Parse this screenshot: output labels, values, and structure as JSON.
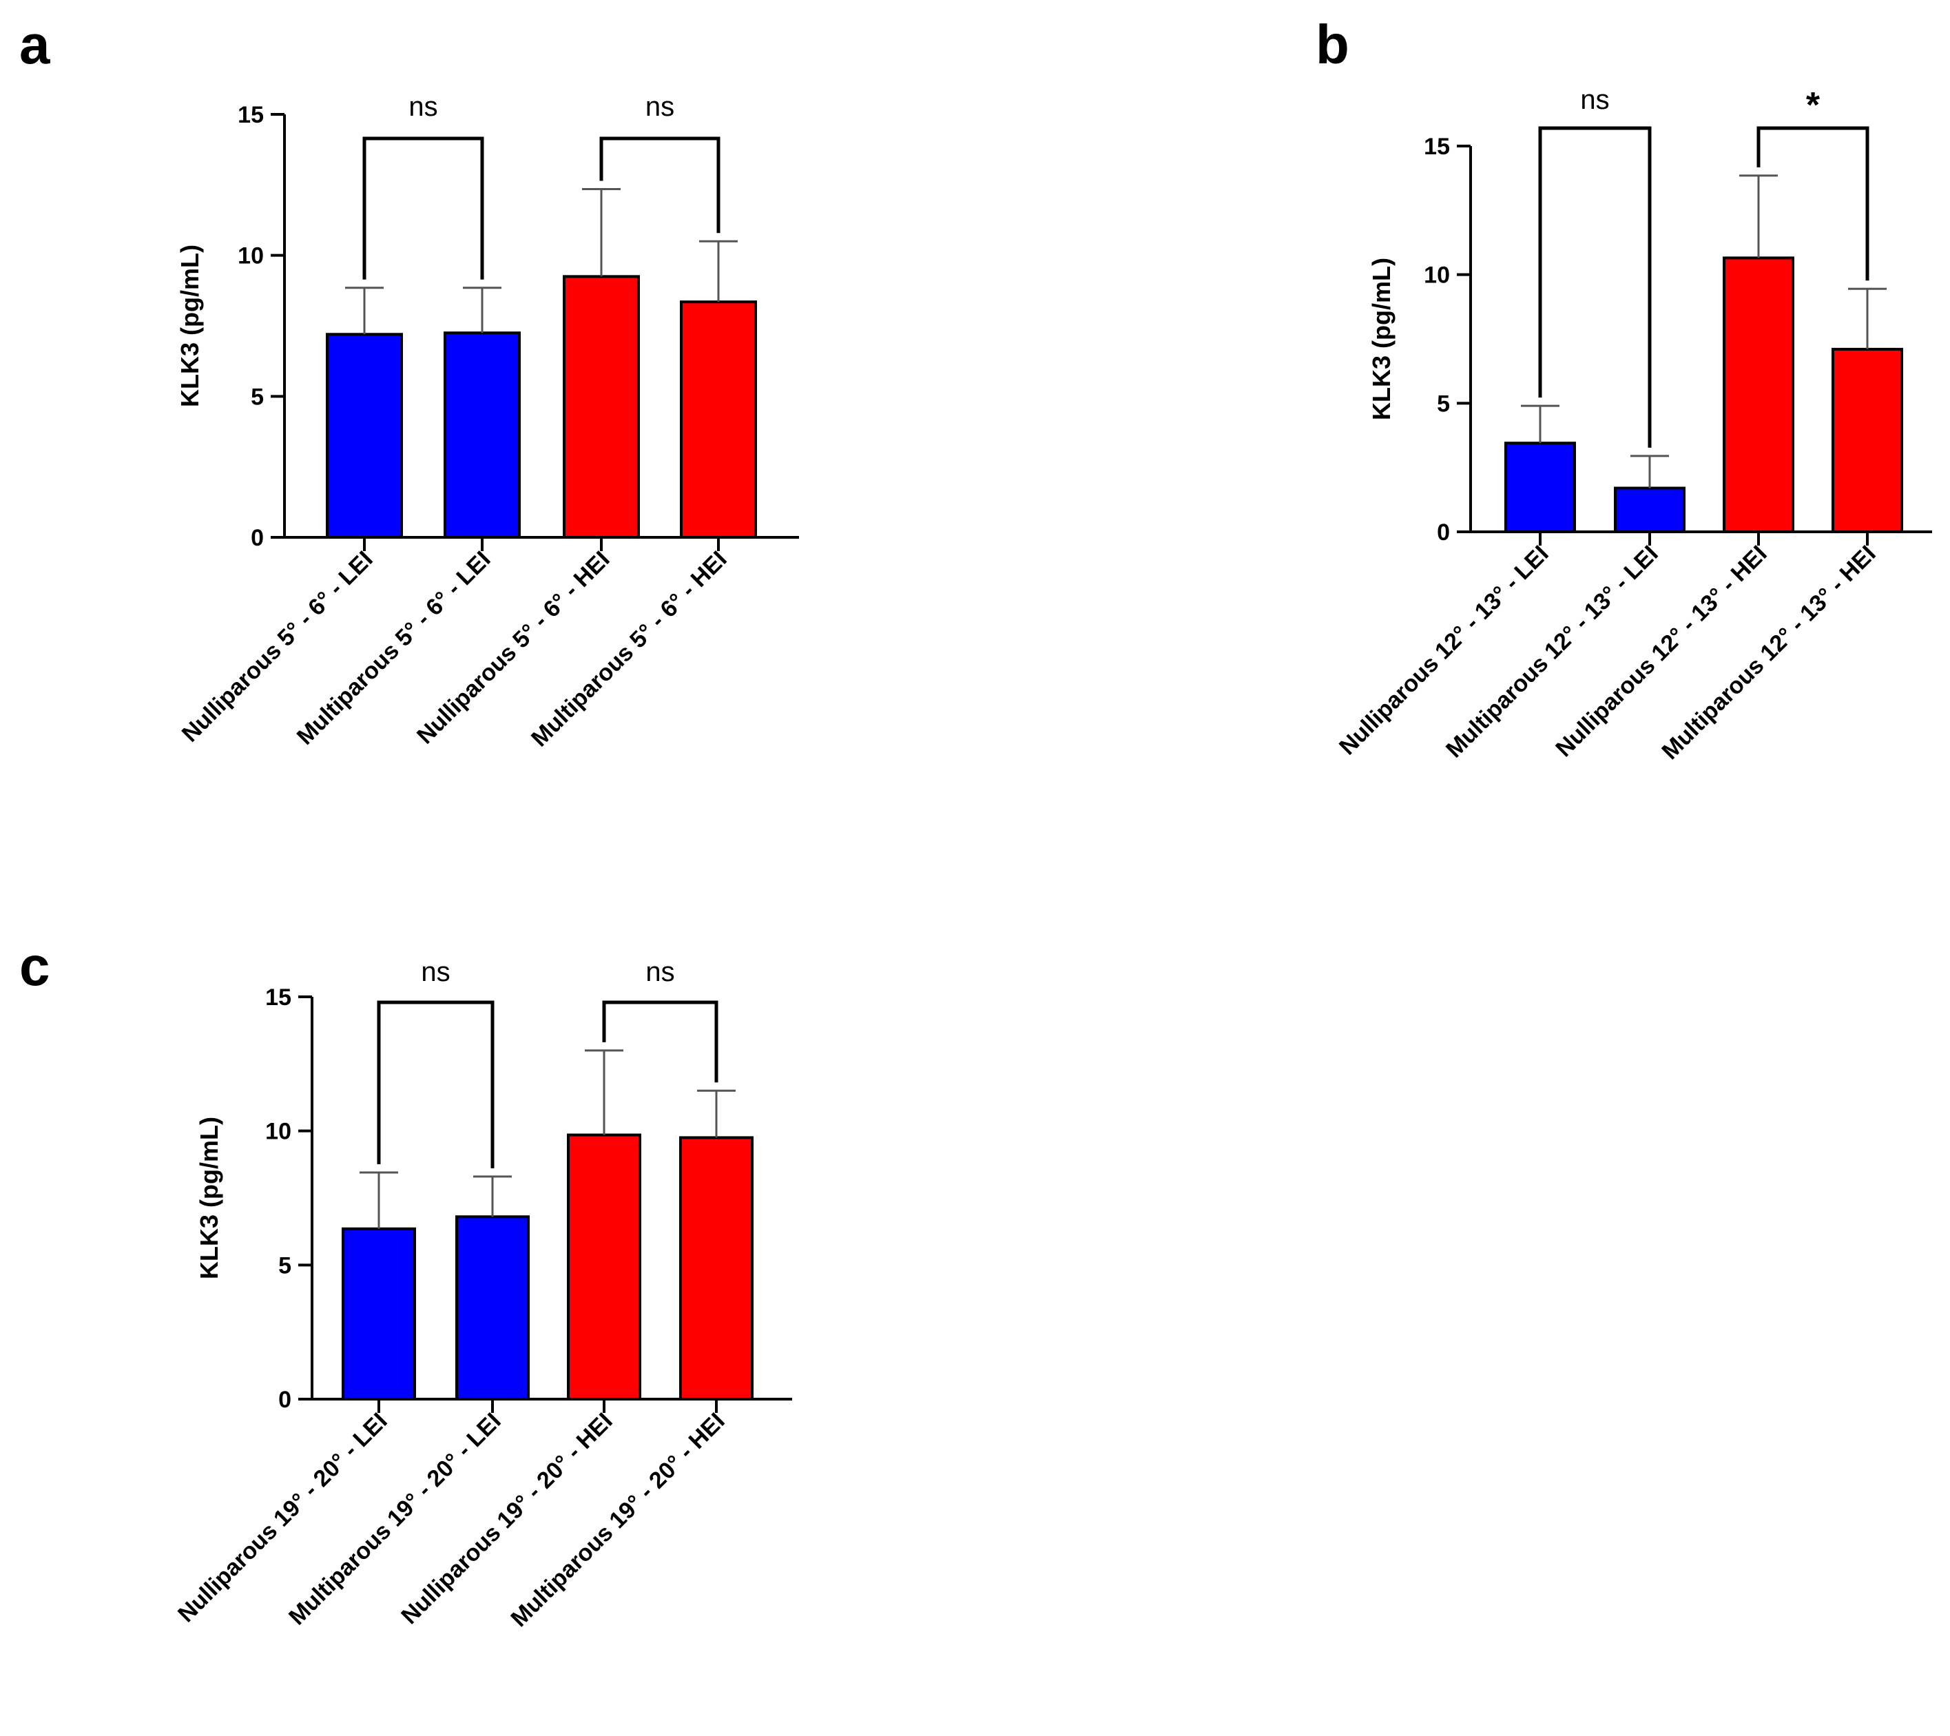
{
  "chart_data": [
    {
      "panel": "a",
      "type": "bar",
      "ylabel": "KLK3 (pg/mL)",
      "ylim": [
        0,
        15
      ],
      "yticks": [
        0,
        5,
        10,
        15
      ],
      "yticklabels": [
        "0",
        "5",
        "10",
        "15"
      ],
      "categories": [
        "Nulliparous 5° - 6° - LEI",
        "Multiparous 5° - 6° - LEI",
        "Nulliparous 5° - 6° - HEI",
        "Multiparous  5° - 6° - HEI"
      ],
      "values": [
        7.2,
        7.25,
        9.25,
        8.35
      ],
      "error_upper": [
        8.85,
        8.85,
        12.35,
        10.5
      ],
      "colors": [
        "#0000ff",
        "#0000ff",
        "#ff0000",
        "#ff0000"
      ],
      "comparisons": [
        {
          "pair": [
            0,
            1
          ],
          "label": "ns"
        },
        {
          "pair": [
            2,
            3
          ],
          "label": "ns"
        }
      ]
    },
    {
      "panel": "b",
      "type": "bar",
      "ylabel": "KLK3 (pg/mL)",
      "ylim": [
        0,
        15
      ],
      "yticks": [
        0,
        5,
        10,
        15
      ],
      "yticklabels": [
        "0",
        "5",
        "10",
        "15"
      ],
      "categories": [
        "Nulliparous  12° - 13° - LEI",
        "Multiparous   12° - 13° - LEI",
        "Nulliparous  12° - 13° - HEI",
        "Multiparous   12° - 13° - HEI"
      ],
      "values": [
        3.45,
        1.7,
        10.65,
        7.1
      ],
      "error_upper": [
        4.9,
        2.95,
        13.85,
        9.45
      ],
      "colors": [
        "#0000ff",
        "#0000ff",
        "#ff0000",
        "#ff0000"
      ],
      "comparisons": [
        {
          "pair": [
            0,
            1
          ],
          "label": "ns"
        },
        {
          "pair": [
            2,
            3
          ],
          "label": "*"
        }
      ]
    },
    {
      "panel": "c",
      "type": "bar",
      "ylabel": "KLK3 (pg/mL)",
      "ylim": [
        0,
        15
      ],
      "yticks": [
        0,
        5,
        10,
        15
      ],
      "yticklabels": [
        "0",
        "5",
        "10",
        "15"
      ],
      "categories": [
        "Nulliparous  19° - 20° - LEI",
        "Multiparous   19° - 20° - LEI",
        "Nulliparous  19° - 20° - HEI",
        "Multiparous   19° - 20° - HEI"
      ],
      "values": [
        6.35,
        6.8,
        9.85,
        9.75
      ],
      "error_upper": [
        8.45,
        8.3,
        13.0,
        11.5
      ],
      "colors": [
        "#0000ff",
        "#0000ff",
        "#ff0000",
        "#ff0000"
      ],
      "comparisons": [
        {
          "pair": [
            0,
            1
          ],
          "label": "ns"
        },
        {
          "pair": [
            2,
            3
          ],
          "label": "ns"
        }
      ]
    }
  ]
}
